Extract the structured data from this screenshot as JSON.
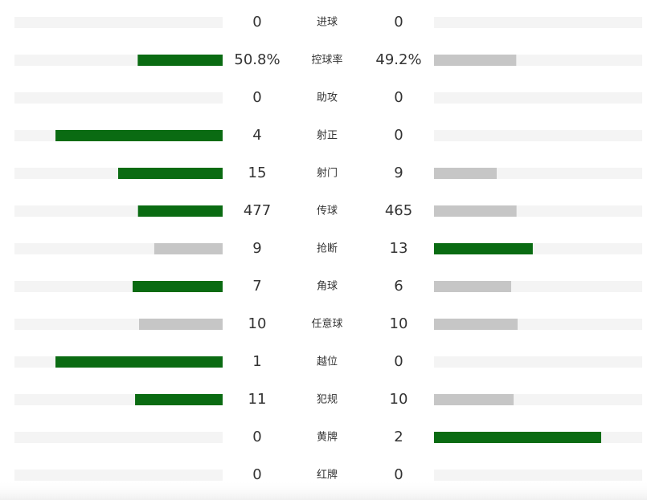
{
  "stats": [
    {
      "label": "进球",
      "home": 0,
      "away": 0
    },
    {
      "label": "控球率",
      "home": 50.8,
      "away": 49.2,
      "home_label": "50.8%",
      "away_label": "49.2%"
    },
    {
      "label": "助攻",
      "home": 0,
      "away": 0
    },
    {
      "label": "射正",
      "home": 4,
      "away": 0
    },
    {
      "label": "射门",
      "home": 15,
      "away": 9
    },
    {
      "label": "传球",
      "home": 477,
      "away": 465
    },
    {
      "label": "抢断",
      "home": 9,
      "away": 13
    },
    {
      "label": "角球",
      "home": 7,
      "away": 6
    },
    {
      "label": "任意球",
      "home": 10,
      "away": 10
    },
    {
      "label": "越位",
      "home": 1,
      "away": 0
    },
    {
      "label": "犯规",
      "home": 11,
      "away": 10
    },
    {
      "label": "黄牌",
      "home": 0,
      "away": 2
    },
    {
      "label": "红牌",
      "home": 0,
      "away": 0
    }
  ]
}
